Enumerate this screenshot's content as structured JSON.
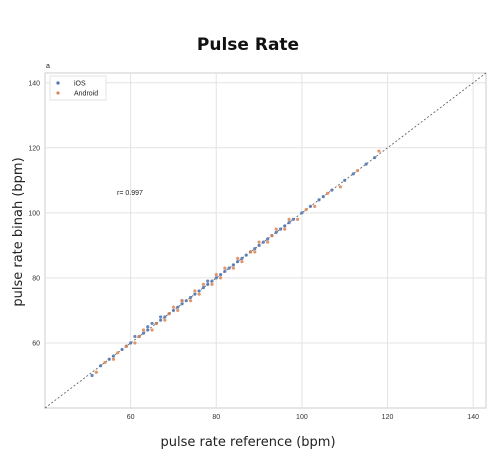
{
  "title": "Pulse Rate",
  "panel_label": "a",
  "chart_data": {
    "type": "scatter",
    "title": "Pulse Rate",
    "xlabel": "pulse rate reference (bpm)",
    "ylabel": "pulse rate binah (bpm)",
    "xlim": [
      40,
      143
    ],
    "ylim": [
      40,
      143
    ],
    "xticks": [
      60,
      80,
      100,
      120,
      140
    ],
    "yticks": [
      60,
      80,
      100,
      120,
      140
    ],
    "grid": true,
    "legend_position": "top-left",
    "annotation": "r= 0.997",
    "identity_line": true,
    "series": [
      {
        "name": "iOS",
        "color": "#4c72b0",
        "x": [
          51,
          53,
          55,
          56,
          58,
          59,
          60,
          61,
          62,
          63,
          64,
          64,
          65,
          66,
          67,
          67,
          68,
          69,
          70,
          71,
          72,
          72,
          73,
          74,
          75,
          76,
          77,
          78,
          78,
          79,
          80,
          81,
          82,
          83,
          84,
          85,
          86,
          87,
          88,
          89,
          90,
          91,
          92,
          93,
          94,
          95,
          96,
          97,
          98,
          100,
          102,
          104,
          105,
          107,
          110,
          112,
          115,
          117
        ],
        "y": [
          50,
          53,
          55,
          56,
          58,
          59,
          60,
          62,
          62,
          63,
          64,
          65,
          66,
          66,
          68,
          67,
          68,
          69,
          70,
          71,
          72,
          73,
          73,
          74,
          75,
          76,
          77,
          78,
          79,
          79,
          80,
          81,
          82,
          83,
          84,
          85,
          86,
          87,
          88,
          89,
          90,
          91,
          92,
          93,
          94,
          95,
          96,
          97,
          98,
          100,
          102,
          104,
          105,
          107,
          110,
          112,
          115,
          117
        ]
      },
      {
        "name": "Android",
        "color": "#dd8452",
        "x": [
          52,
          54,
          56,
          57,
          59,
          61,
          62,
          63,
          65,
          66,
          68,
          69,
          70,
          71,
          72,
          74,
          75,
          76,
          77,
          79,
          80,
          81,
          82,
          84,
          85,
          86,
          88,
          89,
          90,
          92,
          93,
          94,
          96,
          97,
          99,
          101,
          103,
          106,
          109,
          113,
          118
        ],
        "y": [
          51,
          54,
          55,
          57,
          59,
          60,
          62,
          64,
          64,
          66,
          67,
          69,
          71,
          70,
          73,
          73,
          76,
          75,
          78,
          78,
          81,
          80,
          83,
          83,
          86,
          85,
          88,
          88,
          91,
          91,
          93,
          95,
          95,
          98,
          98,
          101,
          102,
          106,
          108,
          113,
          119
        ]
      }
    ]
  }
}
